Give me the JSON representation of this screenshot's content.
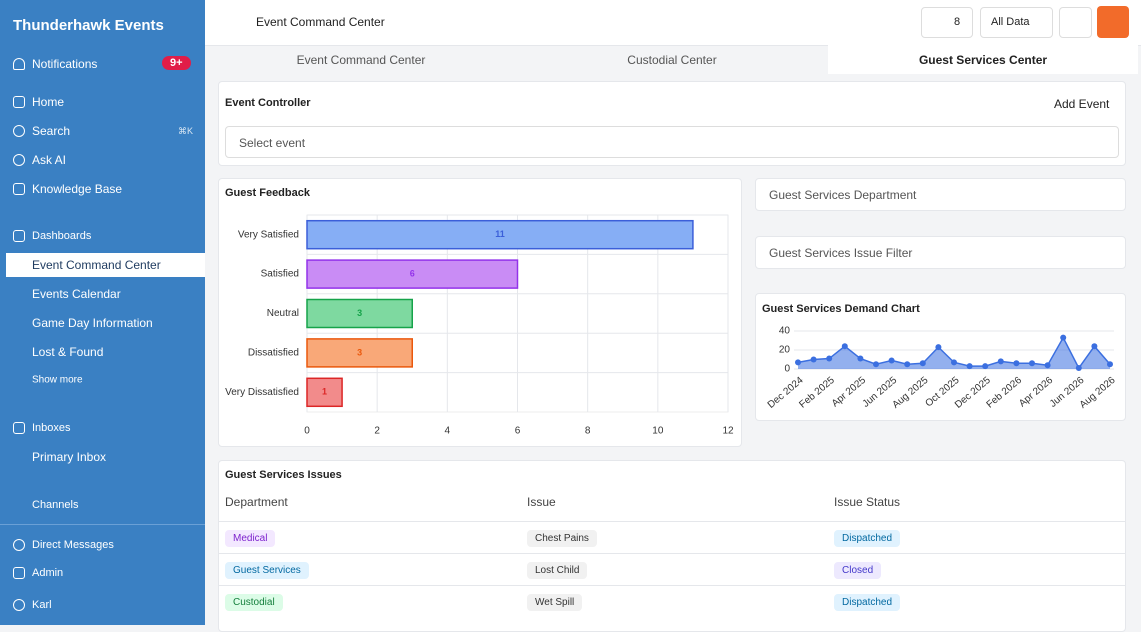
{
  "sidebar": {
    "workspace": "Thunderhawk Events",
    "notifications": {
      "label": "Notifications",
      "badge": "9+"
    },
    "nav": [
      {
        "label": "Home"
      },
      {
        "label": "Search",
        "shortcut": "⌘K"
      },
      {
        "label": "Ask AI"
      },
      {
        "label": "Knowledge Base"
      }
    ],
    "dashboards": {
      "label": "Dashboards",
      "items": [
        "Event Command Center",
        "Events Calendar",
        "Game Day Information",
        "Lost & Found"
      ],
      "show_more": "Show more"
    },
    "inboxes": {
      "label": "Inboxes",
      "items": [
        "Primary Inbox"
      ]
    },
    "channels": "Channels",
    "footer": [
      "Direct Messages",
      "Admin",
      "Karl"
    ]
  },
  "topbar": {
    "title": "Event Command Center",
    "members": "8",
    "filter": "All Data"
  },
  "tabs": [
    "Event Command Center",
    "Custodial Center",
    "Guest Services Center"
  ],
  "event_controller": {
    "title": "Event Controller",
    "add": "Add Event",
    "select": "Select event"
  },
  "filters": [
    "Guest Services Department",
    "Guest Services Issue Filter"
  ],
  "chart_data": [
    {
      "type": "bar",
      "orientation": "horizontal",
      "title": "Guest Feedback",
      "categories": [
        "Very Satisfied",
        "Satisfied",
        "Neutral",
        "Dissatisfied",
        "Very Dissatisfied"
      ],
      "values": [
        11,
        6,
        3,
        3,
        1
      ],
      "colors": [
        "#86aef5",
        "#c98cf5",
        "#7ed9a0",
        "#f9a878",
        "#f28b8b"
      ],
      "edge_colors": [
        "#3b5fd9",
        "#9333ea",
        "#16a34a",
        "#ea580c",
        "#dc2626"
      ],
      "xlim": [
        0,
        12
      ],
      "xticks": [
        0,
        2,
        4,
        6,
        8,
        10,
        12
      ],
      "grid": true
    },
    {
      "type": "line",
      "title": "Guest Services Demand Chart",
      "categories": [
        "Dec 2024",
        null,
        "Feb 2025",
        null,
        "Apr 2025",
        null,
        "Jun 2025",
        null,
        "Aug 2025",
        null,
        "Oct 2025",
        null,
        "Dec 2025",
        null,
        "Feb 2026",
        null,
        "Apr 2026",
        null,
        "Jun 2026",
        null,
        "Aug 2026"
      ],
      "values": [
        7,
        10,
        11,
        24,
        11,
        5,
        9,
        5,
        6,
        23,
        7,
        3,
        3,
        8,
        6,
        6,
        4,
        33,
        1,
        24,
        5
      ],
      "color": "#3b6fe0",
      "ylim": [
        0,
        40
      ],
      "yticks": [
        0,
        20,
        40
      ],
      "grid": true
    }
  ],
  "table": {
    "title": "Guest Services Issues",
    "columns": [
      "Department",
      "Issue",
      "Issue Status"
    ],
    "rows": [
      [
        "Medical",
        "Chest Pains",
        "Dispatched"
      ],
      [
        "Guest Services",
        "Lost Child",
        "Closed"
      ],
      [
        "Custodial",
        "Wet Spill",
        "Dispatched"
      ]
    ]
  }
}
